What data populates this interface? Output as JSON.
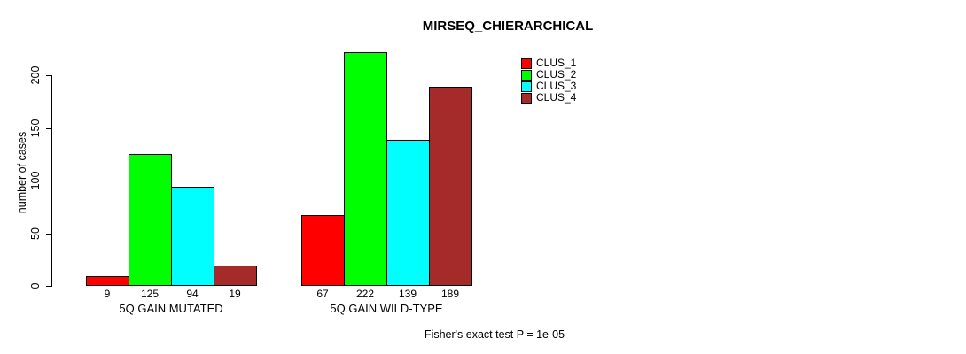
{
  "chart_data": {
    "type": "bar",
    "title": "MIRSEQ_CHIERARCHICAL",
    "ylabel": "number of cases",
    "xlabel": "",
    "categories": [
      "5Q GAIN MUTATED",
      "5Q GAIN WILD-TYPE"
    ],
    "series": [
      {
        "name": "CLUS_1",
        "color": "#FF0000",
        "values": [
          9,
          67
        ]
      },
      {
        "name": "CLUS_2",
        "color": "#00FF00",
        "values": [
          125,
          222
        ]
      },
      {
        "name": "CLUS_3",
        "color": "#00FFFF",
        "values": [
          94,
          139
        ]
      },
      {
        "name": "CLUS_4",
        "color": "#A52A2A",
        "values": [
          19,
          189
        ]
      }
    ],
    "yticks": [
      0,
      50,
      100,
      150,
      200
    ],
    "ylim": [
      0,
      235
    ],
    "grid": false,
    "bar_value_labels": true,
    "legend_position": "top-right",
    "annotation": "Fisher's exact test P = 1e-05"
  }
}
